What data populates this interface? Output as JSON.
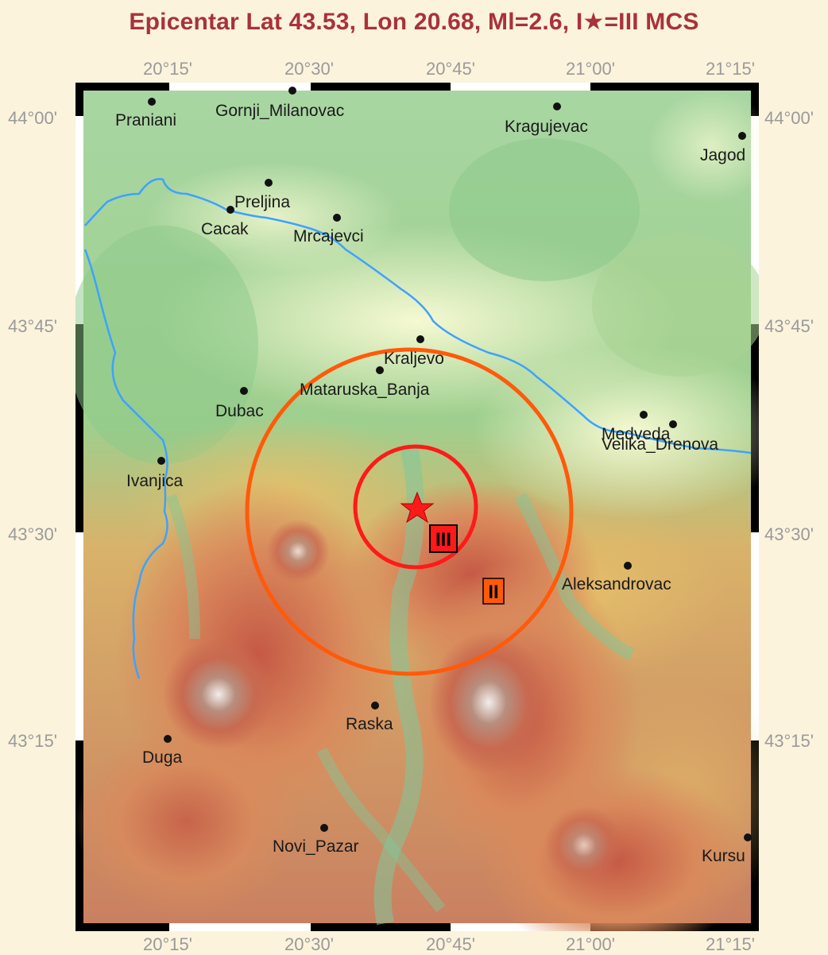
{
  "title": "Epicentar Lat 43.53, Lon 20.68, Ml=2.6, I★=III MCS",
  "axes": {
    "lon_labels": [
      "20°15'",
      "20°30'",
      "20°45'",
      "21°00'",
      "21°15'"
    ],
    "lat_labels": [
      "44°00'",
      "43°45'",
      "43°30'",
      "43°15'"
    ]
  },
  "cities": [
    {
      "name": "Praniani"
    },
    {
      "name": "Gornji_Milanovac"
    },
    {
      "name": "Kragujevac"
    },
    {
      "name": "Jagod"
    },
    {
      "name": "Preljina"
    },
    {
      "name": "Cacak"
    },
    {
      "name": "Mrcajevci"
    },
    {
      "name": "Kraljevo"
    },
    {
      "name": "Mataruska_Banja"
    },
    {
      "name": "Dubac"
    },
    {
      "name": "Medveda"
    },
    {
      "name": "Velika_Drenova"
    },
    {
      "name": "Ivanjica"
    },
    {
      "name": "Aleksandrovac"
    },
    {
      "name": "Raska"
    },
    {
      "name": "Duga"
    },
    {
      "name": "Novi_Pazar"
    },
    {
      "name": "Kursu"
    }
  ],
  "intensity_labels": {
    "inner": "III",
    "outer": "II"
  },
  "colors": {
    "title": "#a8323a",
    "epicenter": "#ff1a1a",
    "ring_inner": "#ff1a1a",
    "ring_outer": "#ff5a0a",
    "river": "#3da2ff",
    "axis_text": "#9a9a9a",
    "background": "#fbf3dc"
  }
}
